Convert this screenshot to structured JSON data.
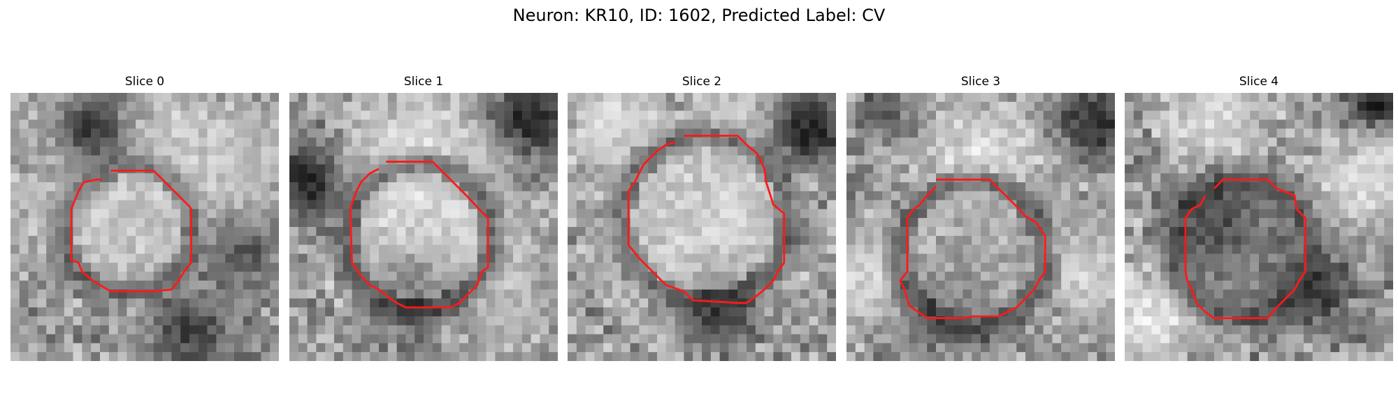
{
  "figure": {
    "title": "Neuron: KR10, ID: 1602, Predicted Label: CV",
    "outline_color": "#ff1a1a"
  },
  "panels": [
    {
      "title": "Slice 0",
      "blobs": [
        {
          "cx": 17,
          "cy": 8,
          "r": 5,
          "v": 225
        },
        {
          "cx": 8,
          "cy": 12,
          "r": 6,
          "v": 195
        },
        {
          "cx": 23,
          "cy": 9,
          "r": 6,
          "v": 200
        },
        {
          "cx": 7,
          "cy": 3,
          "r": 3,
          "v": 205
        }
      ],
      "darks": [
        {
          "cx": 9,
          "cy": 4,
          "r": 3,
          "v": 60
        },
        {
          "cx": 20,
          "cy": 27,
          "r": 3,
          "v": 70
        },
        {
          "cx": 26,
          "cy": 18,
          "r": 3,
          "v": 85
        }
      ],
      "ringDark": 0.55,
      "interior": 205
    },
    {
      "title": "Slice 1",
      "blobs": [
        {
          "cx": 14,
          "cy": 6,
          "r": 5,
          "v": 215
        },
        {
          "cx": 16,
          "cy": 13,
          "r": 6,
          "v": 230
        },
        {
          "cx": 23,
          "cy": 22,
          "r": 5,
          "v": 190
        }
      ],
      "darks": [
        {
          "cx": 2,
          "cy": 10,
          "r": 3,
          "v": 45
        },
        {
          "cx": 27,
          "cy": 3,
          "r": 3,
          "v": 30
        },
        {
          "cx": 14,
          "cy": 22,
          "r": 3,
          "v": 40
        }
      ],
      "ringDark": 0.65,
      "interior": 210
    },
    {
      "title": "Slice 2",
      "blobs": [
        {
          "cx": 15,
          "cy": 15,
          "r": 7,
          "v": 215
        },
        {
          "cx": 5,
          "cy": 3,
          "r": 4,
          "v": 215
        },
        {
          "cx": 20,
          "cy": 4,
          "r": 4,
          "v": 205
        }
      ],
      "darks": [
        {
          "cx": 27,
          "cy": 4,
          "r": 3,
          "v": 35
        },
        {
          "cx": 17,
          "cy": 24,
          "r": 3,
          "v": 45
        }
      ],
      "ringDark": 0.6,
      "interior": 205
    },
    {
      "title": "Slice 3",
      "blobs": [
        {
          "cx": 15,
          "cy": 8,
          "r": 5,
          "v": 225
        },
        {
          "cx": 3,
          "cy": 20,
          "r": 4,
          "v": 215
        },
        {
          "cx": 27,
          "cy": 20,
          "r": 4,
          "v": 210
        }
      ],
      "darks": [
        {
          "cx": 28,
          "cy": 3,
          "r": 3,
          "v": 50
        },
        {
          "cx": 11,
          "cy": 24,
          "r": 3,
          "v": 70
        },
        {
          "cx": 4,
          "cy": 2,
          "r": 2,
          "v": 80
        }
      ],
      "ringDark": 0.7,
      "interior": 175
    },
    {
      "title": "Slice 4",
      "blobs": [
        {
          "cx": 10,
          "cy": 3,
          "r": 4,
          "v": 225
        },
        {
          "cx": 27,
          "cy": 10,
          "r": 4,
          "v": 220
        },
        {
          "cx": 3,
          "cy": 25,
          "r": 4,
          "v": 230
        }
      ],
      "darks": [
        {
          "cx": 10,
          "cy": 14,
          "r": 3,
          "v": 35
        },
        {
          "cx": 28,
          "cy": 1,
          "r": 2,
          "v": 30
        },
        {
          "cx": 21,
          "cy": 22,
          "r": 3,
          "v": 45
        }
      ],
      "ringDark": 0.7,
      "interior": 105
    }
  ]
}
